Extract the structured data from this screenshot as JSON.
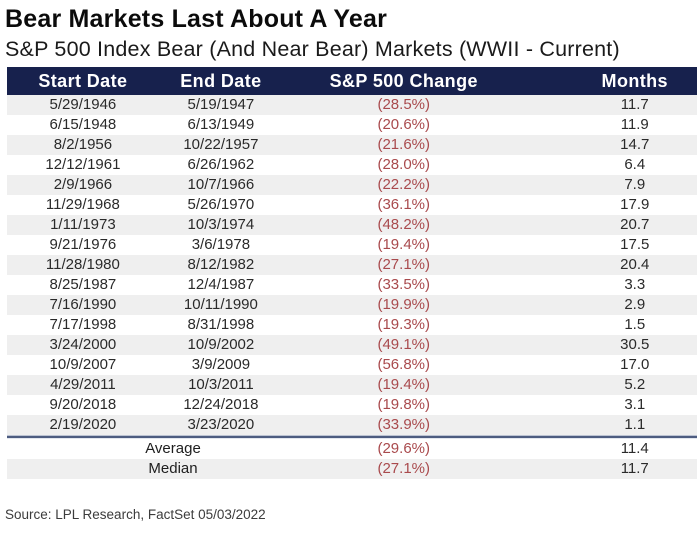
{
  "title": "Bear Markets Last About A Year",
  "subtitle": "S&P 500 Index Bear (And Near Bear) Markets (WWII - Current)",
  "source": "Source: LPL Research, FactSet 05/03/2022",
  "colors": {
    "header_bg": "#17214d",
    "header_text": "#ffffff",
    "negative_red": "#a94a4d",
    "row_alt_bg": "#efefef",
    "divider": "#4d5c80"
  },
  "table": {
    "columns": [
      "Start Date",
      "End Date",
      "S&P 500 Change",
      "Months"
    ],
    "rows": [
      [
        "5/29/1946",
        "5/19/1947",
        "(28.5%)",
        "11.7"
      ],
      [
        "6/15/1948",
        "6/13/1949",
        "(20.6%)",
        "11.9"
      ],
      [
        "8/2/1956",
        "10/22/1957",
        "(21.6%)",
        "14.7"
      ],
      [
        "12/12/1961",
        "6/26/1962",
        "(28.0%)",
        "6.4"
      ],
      [
        "2/9/1966",
        "10/7/1966",
        "(22.2%)",
        "7.9"
      ],
      [
        "11/29/1968",
        "5/26/1970",
        "(36.1%)",
        "17.9"
      ],
      [
        "1/11/1973",
        "10/3/1974",
        "(48.2%)",
        "20.7"
      ],
      [
        "9/21/1976",
        "3/6/1978",
        "(19.4%)",
        "17.5"
      ],
      [
        "11/28/1980",
        "8/12/1982",
        "(27.1%)",
        "20.4"
      ],
      [
        "8/25/1987",
        "12/4/1987",
        "(33.5%)",
        "3.3"
      ],
      [
        "7/16/1990",
        "10/11/1990",
        "(19.9%)",
        "2.9"
      ],
      [
        "7/17/1998",
        "8/31/1998",
        "(19.3%)",
        "1.5"
      ],
      [
        "3/24/2000",
        "10/9/2002",
        "(49.1%)",
        "30.5"
      ],
      [
        "10/9/2007",
        "3/9/2009",
        "(56.8%)",
        "17.0"
      ],
      [
        "4/29/2011",
        "10/3/2011",
        "(19.4%)",
        "5.2"
      ],
      [
        "9/20/2018",
        "12/24/2018",
        "(19.8%)",
        "3.1"
      ],
      [
        "2/19/2020",
        "3/23/2020",
        "(33.9%)",
        "1.1"
      ]
    ],
    "summary": [
      {
        "label": "Average",
        "change": "(29.6%)",
        "months": "11.4"
      },
      {
        "label": "Median",
        "change": "(27.1%)",
        "months": "11.7"
      }
    ]
  },
  "chart_data": {
    "type": "table",
    "title": "Bear Markets Last About A Year",
    "subtitle": "S&P 500 Index Bear (And Near Bear) Markets (WWII - Current)",
    "columns": [
      "Start Date",
      "End Date",
      "S&P 500 Change",
      "Months"
    ],
    "rows": [
      {
        "start_date": "5/29/1946",
        "end_date": "5/19/1947",
        "sp500_change_pct": -28.5,
        "months": 11.7
      },
      {
        "start_date": "6/15/1948",
        "end_date": "6/13/1949",
        "sp500_change_pct": -20.6,
        "months": 11.9
      },
      {
        "start_date": "8/2/1956",
        "end_date": "10/22/1957",
        "sp500_change_pct": -21.6,
        "months": 14.7
      },
      {
        "start_date": "12/12/1961",
        "end_date": "6/26/1962",
        "sp500_change_pct": -28.0,
        "months": 6.4
      },
      {
        "start_date": "2/9/1966",
        "end_date": "10/7/1966",
        "sp500_change_pct": -22.2,
        "months": 7.9
      },
      {
        "start_date": "11/29/1968",
        "end_date": "5/26/1970",
        "sp500_change_pct": -36.1,
        "months": 17.9
      },
      {
        "start_date": "1/11/1973",
        "end_date": "10/3/1974",
        "sp500_change_pct": -48.2,
        "months": 20.7
      },
      {
        "start_date": "9/21/1976",
        "end_date": "3/6/1978",
        "sp500_change_pct": -19.4,
        "months": 17.5
      },
      {
        "start_date": "11/28/1980",
        "end_date": "8/12/1982",
        "sp500_change_pct": -27.1,
        "months": 20.4
      },
      {
        "start_date": "8/25/1987",
        "end_date": "12/4/1987",
        "sp500_change_pct": -33.5,
        "months": 3.3
      },
      {
        "start_date": "7/16/1990",
        "end_date": "10/11/1990",
        "sp500_change_pct": -19.9,
        "months": 2.9
      },
      {
        "start_date": "7/17/1998",
        "end_date": "8/31/1998",
        "sp500_change_pct": -19.3,
        "months": 1.5
      },
      {
        "start_date": "3/24/2000",
        "end_date": "10/9/2002",
        "sp500_change_pct": -49.1,
        "months": 30.5
      },
      {
        "start_date": "10/9/2007",
        "end_date": "3/9/2009",
        "sp500_change_pct": -56.8,
        "months": 17.0
      },
      {
        "start_date": "4/29/2011",
        "end_date": "10/3/2011",
        "sp500_change_pct": -19.4,
        "months": 5.2
      },
      {
        "start_date": "9/20/2018",
        "end_date": "12/24/2018",
        "sp500_change_pct": -19.8,
        "months": 3.1
      },
      {
        "start_date": "2/19/2020",
        "end_date": "3/23/2020",
        "sp500_change_pct": -33.9,
        "months": 1.1
      }
    ],
    "summary": {
      "average": {
        "sp500_change_pct": -29.6,
        "months": 11.4
      },
      "median": {
        "sp500_change_pct": -27.1,
        "months": 11.7
      }
    },
    "source": "Source: LPL Research, FactSet 05/03/2022"
  }
}
